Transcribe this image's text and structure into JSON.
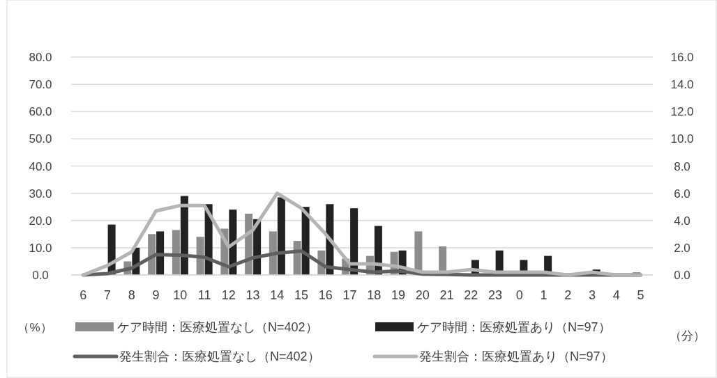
{
  "chart_data": {
    "type": "bar",
    "categories": [
      "6",
      "7",
      "8",
      "9",
      "10",
      "11",
      "12",
      "13",
      "14",
      "15",
      "16",
      "17",
      "18",
      "19",
      "20",
      "21",
      "22",
      "23",
      "0",
      "1",
      "2",
      "3",
      "4",
      "5"
    ],
    "series": [
      {
        "name": "ケア時間：医療処置なし（N=402）",
        "axis": "y2",
        "color": "#8c8c8c",
        "values": [
          0,
          0,
          1.0,
          3.0,
          3.3,
          2.8,
          3.4,
          4.5,
          3.2,
          2.5,
          1.8,
          1.2,
          1.4,
          1.7,
          3.2,
          2.1,
          0,
          0,
          0,
          0,
          0,
          0,
          0,
          0.2
        ]
      },
      {
        "name": "ケア時間：医療処置あり（N=97）",
        "axis": "y2",
        "color": "#222222",
        "values": [
          0,
          3.7,
          2.0,
          3.2,
          5.8,
          5.2,
          4.8,
          4.1,
          5.7,
          5.0,
          5.2,
          4.9,
          3.6,
          1.8,
          0,
          0,
          1.1,
          1.8,
          1.1,
          1.4,
          0,
          0.4,
          0,
          0
        ]
      },
      {
        "name": "発生割合：医療処置なし（N=402）",
        "type": "line",
        "color": "#5f5f5f",
        "values": [
          0,
          0.5,
          2.5,
          7.5,
          7.3,
          6.5,
          3.0,
          6.3,
          8.0,
          8.8,
          3.0,
          2.0,
          1.0,
          1.5,
          0.3,
          0.2,
          0,
          0,
          0,
          0,
          0,
          0,
          0,
          0
        ]
      },
      {
        "name": "発生割合：医療処置あり（N=97）",
        "type": "line",
        "color": "#b4b4b4",
        "values": [
          0,
          3.5,
          8.5,
          23.5,
          25.5,
          25.5,
          10.3,
          16.5,
          30,
          24.5,
          15,
          4.1,
          4.1,
          3.1,
          1.0,
          1.0,
          2.0,
          1.0,
          1.0,
          1.0,
          0,
          1.0,
          0,
          0
        ]
      }
    ],
    "ylabel": "（%）",
    "y2label": "（分）",
    "ylim": [
      0,
      80
    ],
    "yticks": [
      {
        "value": 0,
        "label": "0.0"
      },
      {
        "value": 10,
        "label": "10.0"
      },
      {
        "value": 20,
        "label": "20.0"
      },
      {
        "value": 30,
        "label": "30.0"
      },
      {
        "value": 40,
        "label": "40.0"
      },
      {
        "value": 50,
        "label": "50.0"
      },
      {
        "value": 60,
        "label": "60.0"
      },
      {
        "value": 70,
        "label": "70.0"
      },
      {
        "value": 80,
        "label": "80.0"
      }
    ],
    "y2lim": [
      0,
      16
    ],
    "y2ticks": [
      {
        "value": 0,
        "label": "0.0"
      },
      {
        "value": 2,
        "label": "2.0"
      },
      {
        "value": 4,
        "label": "4.0"
      },
      {
        "value": 6,
        "label": "6.0"
      },
      {
        "value": 8,
        "label": "8.0"
      },
      {
        "value": 10,
        "label": "10.0"
      },
      {
        "value": 12,
        "label": "12.0"
      },
      {
        "value": 14,
        "label": "14.0"
      },
      {
        "value": 16,
        "label": "16.0"
      }
    ],
    "grid": "y",
    "legend": "bottom",
    "marker": "none",
    "line_style": "solid"
  }
}
